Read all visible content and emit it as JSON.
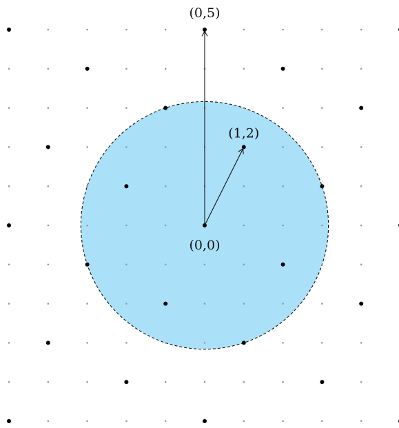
{
  "lattice": {
    "x_range": [
      -5,
      5
    ],
    "y_range": [
      -5,
      5
    ],
    "grid_dot_color": "#999999",
    "highlight_dot_color": "#000000",
    "highlighted_points": [
      [
        -5,
        5
      ],
      [
        0,
        5
      ],
      [
        5,
        5
      ],
      [
        -3,
        4
      ],
      [
        2,
        4
      ],
      [
        -1,
        3
      ],
      [
        4,
        3
      ],
      [
        -4,
        2
      ],
      [
        1,
        2
      ],
      [
        -2,
        1
      ],
      [
        3,
        1
      ],
      [
        -5,
        0
      ],
      [
        0,
        0
      ],
      [
        5,
        0
      ],
      [
        -3,
        -1
      ],
      [
        2,
        -1
      ],
      [
        -1,
        -2
      ],
      [
        4,
        -2
      ],
      [
        -4,
        -3
      ],
      [
        1,
        -3
      ],
      [
        -2,
        -4
      ],
      [
        3,
        -4
      ],
      [
        -5,
        -5
      ],
      [
        0,
        -5
      ],
      [
        5,
        -5
      ]
    ]
  },
  "disk": {
    "center": [
      0,
      0
    ],
    "radius": 3.162,
    "fill_color": "#ABE1F8",
    "border_style": "dashed",
    "border_color": "#111111"
  },
  "vectors": [
    {
      "from": [
        0,
        0
      ],
      "to": [
        0,
        5
      ],
      "color": "#111111"
    },
    {
      "from": [
        0,
        0
      ],
      "to": [
        1,
        2
      ],
      "color": "#111111"
    }
  ],
  "labels": {
    "top_point": "(0,5)",
    "vector_point": "(1,2)",
    "origin": "(0,0)"
  }
}
